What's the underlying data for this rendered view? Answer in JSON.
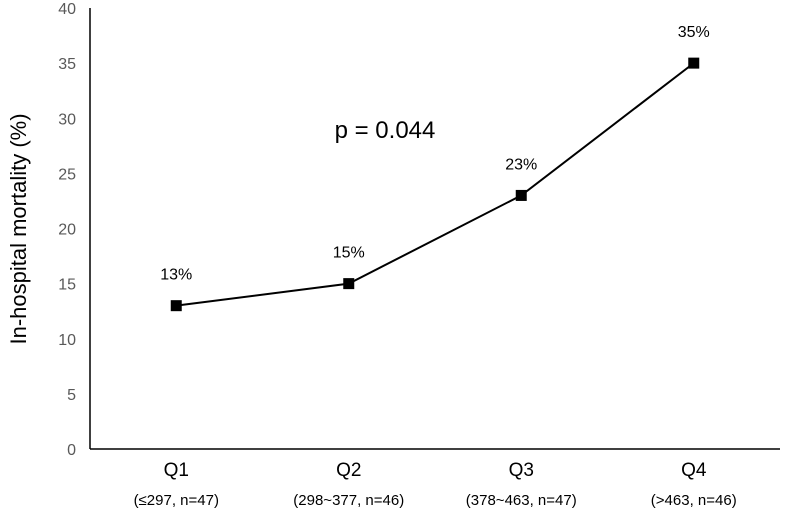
{
  "chart_data": {
    "type": "line",
    "categories": [
      "Q1",
      "Q2",
      "Q3",
      "Q4"
    ],
    "category_sublabels": [
      "(≤297, n=47)",
      "(298~377, n=46)",
      "(378~463, n=47)",
      "(>463, n=46)"
    ],
    "series": [
      {
        "values": [
          13,
          15,
          23,
          35
        ]
      }
    ],
    "data_labels": [
      "13%",
      "15%",
      "23%",
      "35%"
    ],
    "ylabel": "In-hospital mortality (%)",
    "xlabel": "",
    "ylim": [
      0,
      40
    ],
    "yticks": [
      0,
      5,
      10,
      15,
      20,
      25,
      30,
      35,
      40
    ],
    "annotation": "p = 0.044",
    "grid": false,
    "marker": "square",
    "line_color": "#000000"
  }
}
